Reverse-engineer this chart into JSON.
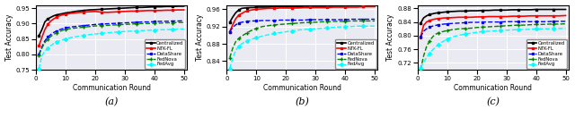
{
  "rounds": [
    1,
    2,
    3,
    4,
    5,
    6,
    7,
    8,
    9,
    10,
    12,
    14,
    16,
    18,
    20,
    22,
    24,
    26,
    28,
    30,
    32,
    34,
    36,
    38,
    40,
    42,
    44,
    46,
    48,
    50
  ],
  "a_centralized": [
    0.86,
    0.88,
    0.905,
    0.915,
    0.92,
    0.925,
    0.928,
    0.93,
    0.932,
    0.934,
    0.937,
    0.94,
    0.942,
    0.944,
    0.945,
    0.946,
    0.947,
    0.948,
    0.949,
    0.95,
    0.951,
    0.952,
    0.952,
    0.953,
    0.954,
    0.954,
    0.955,
    0.955,
    0.956,
    0.956
  ],
  "a_ntkfl": [
    0.828,
    0.855,
    0.88,
    0.897,
    0.908,
    0.915,
    0.92,
    0.925,
    0.928,
    0.93,
    0.933,
    0.935,
    0.937,
    0.938,
    0.939,
    0.937,
    0.936,
    0.937,
    0.938,
    0.939,
    0.94,
    0.94,
    0.941,
    0.942,
    0.942,
    0.942,
    0.943,
    0.943,
    0.944,
    0.944
  ],
  "a_datashare": [
    0.8,
    0.824,
    0.844,
    0.856,
    0.864,
    0.871,
    0.876,
    0.88,
    0.883,
    0.886,
    0.889,
    0.891,
    0.893,
    0.895,
    0.897,
    0.898,
    0.899,
    0.9,
    0.901,
    0.902,
    0.903,
    0.904,
    0.905,
    0.905,
    0.906,
    0.907,
    0.907,
    0.908,
    0.908,
    0.909
  ],
  "a_fednova": [
    0.798,
    0.82,
    0.838,
    0.85,
    0.858,
    0.865,
    0.87,
    0.874,
    0.878,
    0.881,
    0.884,
    0.886,
    0.888,
    0.89,
    0.892,
    0.893,
    0.894,
    0.895,
    0.896,
    0.897,
    0.898,
    0.899,
    0.9,
    0.9,
    0.901,
    0.901,
    0.902,
    0.902,
    0.903,
    0.903
  ],
  "a_fedavg": [
    0.753,
    0.795,
    0.81,
    0.82,
    0.828,
    0.835,
    0.84,
    0.844,
    0.847,
    0.85,
    0.855,
    0.858,
    0.861,
    0.864,
    0.866,
    0.868,
    0.87,
    0.871,
    0.873,
    0.874,
    0.875,
    0.876,
    0.877,
    0.878,
    0.879,
    0.88,
    0.88,
    0.881,
    0.882,
    0.882
  ],
  "a_ylim": [
    0.75,
    0.96
  ],
  "a_yticks": [
    0.75,
    0.8,
    0.85,
    0.9,
    0.95
  ],
  "b_centralized": [
    0.93,
    0.942,
    0.952,
    0.958,
    0.962,
    0.963,
    0.963,
    0.964,
    0.964,
    0.965,
    0.965,
    0.965,
    0.966,
    0.966,
    0.966,
    0.966,
    0.966,
    0.967,
    0.967,
    0.967,
    0.967,
    0.967,
    0.967,
    0.967,
    0.967,
    0.968,
    0.968,
    0.968,
    0.968,
    0.968
  ],
  "b_ntkfl": [
    0.908,
    0.924,
    0.938,
    0.946,
    0.95,
    0.954,
    0.956,
    0.958,
    0.959,
    0.96,
    0.961,
    0.962,
    0.962,
    0.963,
    0.963,
    0.963,
    0.963,
    0.964,
    0.964,
    0.964,
    0.964,
    0.964,
    0.965,
    0.965,
    0.965,
    0.965,
    0.965,
    0.966,
    0.966,
    0.966
  ],
  "b_datashare": [
    0.908,
    0.918,
    0.924,
    0.928,
    0.93,
    0.931,
    0.932,
    0.933,
    0.933,
    0.933,
    0.934,
    0.934,
    0.934,
    0.935,
    0.935,
    0.935,
    0.935,
    0.935,
    0.936,
    0.936,
    0.936,
    0.936,
    0.936,
    0.936,
    0.936,
    0.937,
    0.937,
    0.937,
    0.937,
    0.937
  ],
  "b_fednova": [
    0.848,
    0.87,
    0.885,
    0.892,
    0.898,
    0.902,
    0.906,
    0.91,
    0.913,
    0.916,
    0.92,
    0.922,
    0.924,
    0.925,
    0.926,
    0.927,
    0.928,
    0.929,
    0.93,
    0.93,
    0.931,
    0.931,
    0.932,
    0.932,
    0.932,
    0.933,
    0.933,
    0.933,
    0.933,
    0.933
  ],
  "b_fedavg": [
    0.823,
    0.847,
    0.865,
    0.874,
    0.88,
    0.884,
    0.887,
    0.89,
    0.892,
    0.894,
    0.898,
    0.901,
    0.904,
    0.906,
    0.908,
    0.91,
    0.912,
    0.913,
    0.914,
    0.915,
    0.916,
    0.917,
    0.918,
    0.919,
    0.92,
    0.92,
    0.921,
    0.921,
    0.921,
    0.921
  ],
  "b_ylim": [
    0.82,
    0.97
  ],
  "b_yticks": [
    0.84,
    0.88,
    0.92,
    0.96
  ],
  "c_centralized": [
    0.836,
    0.852,
    0.858,
    0.862,
    0.864,
    0.866,
    0.867,
    0.868,
    0.869,
    0.87,
    0.871,
    0.872,
    0.872,
    0.873,
    0.873,
    0.874,
    0.874,
    0.875,
    0.875,
    0.875,
    0.876,
    0.876,
    0.876,
    0.876,
    0.877,
    0.877,
    0.877,
    0.877,
    0.877,
    0.877
  ],
  "c_ntkfl": [
    0.795,
    0.83,
    0.84,
    0.844,
    0.847,
    0.849,
    0.85,
    0.851,
    0.852,
    0.852,
    0.853,
    0.854,
    0.854,
    0.854,
    0.855,
    0.855,
    0.856,
    0.856,
    0.856,
    0.856,
    0.857,
    0.857,
    0.857,
    0.858,
    0.858,
    0.858,
    0.858,
    0.858,
    0.858,
    0.859
  ],
  "c_datashare": [
    0.796,
    0.813,
    0.82,
    0.825,
    0.828,
    0.83,
    0.832,
    0.833,
    0.834,
    0.835,
    0.836,
    0.837,
    0.838,
    0.839,
    0.839,
    0.84,
    0.84,
    0.84,
    0.84,
    0.841,
    0.841,
    0.841,
    0.841,
    0.841,
    0.841,
    0.841,
    0.841,
    0.842,
    0.842,
    0.842
  ],
  "c_fednova": [
    0.7,
    0.74,
    0.768,
    0.784,
    0.796,
    0.804,
    0.808,
    0.811,
    0.813,
    0.815,
    0.818,
    0.82,
    0.821,
    0.822,
    0.824,
    0.825,
    0.826,
    0.827,
    0.828,
    0.829,
    0.83,
    0.831,
    0.831,
    0.832,
    0.833,
    0.833,
    0.834,
    0.834,
    0.834,
    0.835
  ],
  "c_fedavg": [
    0.706,
    0.722,
    0.736,
    0.748,
    0.758,
    0.766,
    0.774,
    0.78,
    0.785,
    0.79,
    0.797,
    0.801,
    0.805,
    0.807,
    0.81,
    0.812,
    0.813,
    0.814,
    0.815,
    0.816,
    0.817,
    0.818,
    0.818,
    0.819,
    0.82,
    0.82,
    0.82,
    0.821,
    0.821,
    0.821
  ],
  "c_ylim": [
    0.7,
    0.89
  ],
  "c_yticks": [
    0.72,
    0.76,
    0.8,
    0.84,
    0.88
  ],
  "legend_labels": [
    "Centralized",
    "NTK-FL",
    "DataShare",
    "FedNova",
    "FedAvg"
  ],
  "colors": [
    "black",
    "red",
    "blue",
    "green",
    "cyan"
  ],
  "linestyles": [
    "-",
    "-",
    "--",
    "--",
    "--"
  ],
  "markers": [
    "s",
    "s",
    "s",
    "+",
    "D"
  ],
  "markersizes": [
    2.0,
    2.0,
    2.0,
    3.5,
    2.0
  ],
  "linewidths": [
    1.2,
    1.2,
    1.0,
    1.0,
    1.0
  ],
  "xlabel": "Communication Round",
  "ylabel": "Test Accuracy",
  "subplot_labels": [
    "(a)",
    "(b)",
    "(c)"
  ],
  "bg_color": "#eaeaf2",
  "grid_color": "white"
}
